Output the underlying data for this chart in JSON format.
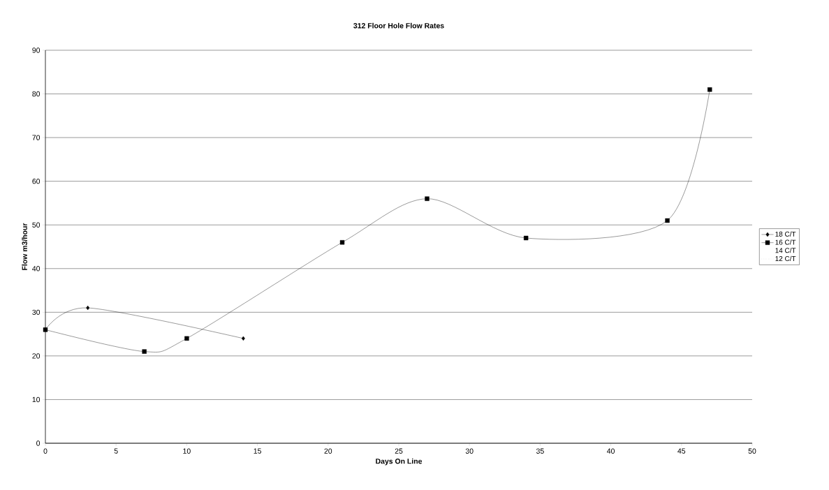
{
  "chart_data": {
    "type": "line",
    "title": "312 Floor Hole Flow Rates",
    "xlabel": "Days On Line",
    "ylabel": "Flow m3/hour",
    "series": [
      {
        "name": "18 C/T",
        "color": "#000000",
        "marker": "diamond",
        "x": [
          0,
          3,
          14
        ],
        "values": [
          26,
          31,
          24
        ]
      },
      {
        "name": "16 C/T",
        "color": "#000000",
        "marker": "square",
        "x": [
          0,
          7,
          10,
          21,
          27,
          34,
          44,
          47
        ],
        "values": [
          26,
          21,
          24,
          46,
          56,
          47,
          51,
          81
        ]
      },
      {
        "name": "14 C/T",
        "marker": "none"
      },
      {
        "name": "12 C/T",
        "color": "#999999",
        "marker": "none",
        "line_style": "dotted"
      }
    ],
    "xlim": [
      0,
      50
    ],
    "ylim": [
      0,
      90
    ],
    "xticks": [
      0,
      5,
      10,
      15,
      20,
      25,
      30,
      35,
      40,
      45,
      50
    ],
    "yticks": [
      0,
      10,
      20,
      30,
      40,
      50,
      60,
      70,
      80,
      90
    ],
    "grid": "y",
    "legend": "right"
  }
}
